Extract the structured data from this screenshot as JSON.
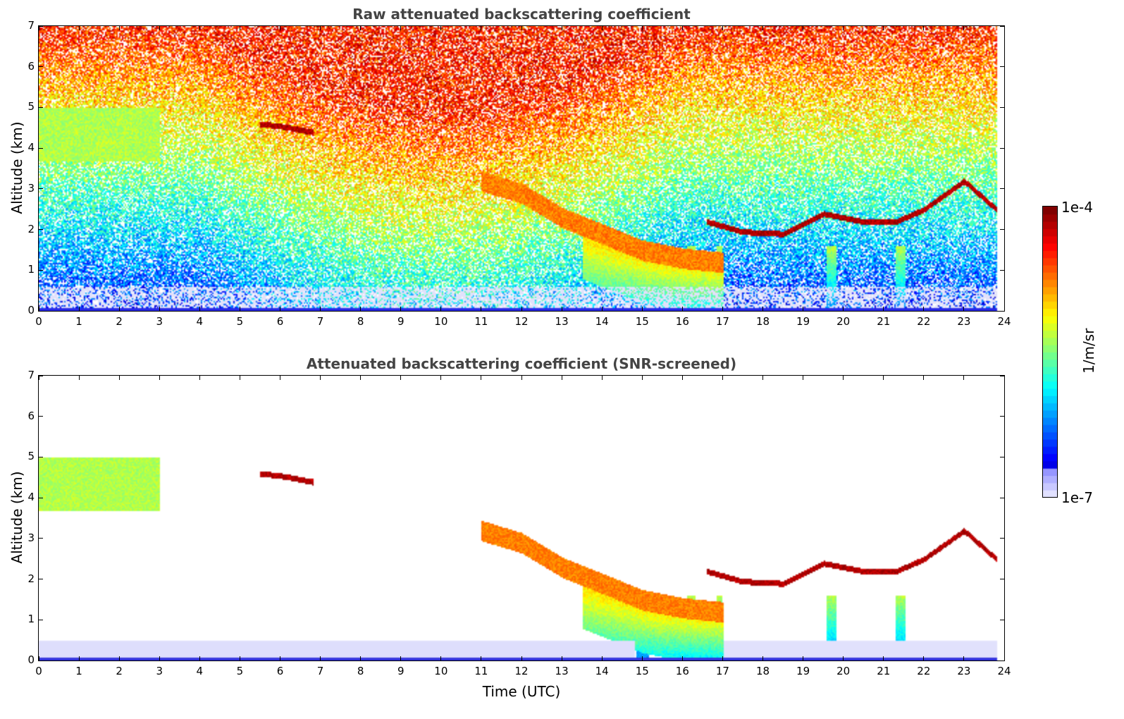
{
  "chart_data": [
    {
      "type": "heatmap",
      "id": "raw",
      "title": "Raw attenuated backscattering coefficient",
      "xlabel": "",
      "ylabel": "Altitude (km)",
      "xlim": [
        0,
        24
      ],
      "ylim": [
        0,
        7
      ],
      "x_ticks": [
        "0",
        "1",
        "2",
        "3",
        "4",
        "5",
        "6",
        "7",
        "8",
        "9",
        "10",
        "11",
        "12",
        "13",
        "14",
        "15",
        "16",
        "17",
        "18",
        "19",
        "20",
        "21",
        "22",
        "23",
        "24"
      ],
      "y_ticks": [
        "0",
        "1",
        "2",
        "3",
        "4",
        "5",
        "6",
        "7"
      ],
      "features": [
        {
          "name": "cloud-layer-descending",
          "t": [
            11,
            12,
            13,
            14,
            15,
            16,
            17
          ],
          "alt": [
            3.2,
            2.9,
            2.3,
            1.9,
            1.5,
            1.3,
            1.2
          ],
          "intensity": "high"
        },
        {
          "name": "cloud-top-layers",
          "t": [
            16.6,
            17.5,
            18.5,
            19.5,
            20.5,
            21.3,
            22,
            23,
            23.8
          ],
          "alt": [
            2.2,
            1.95,
            1.9,
            2.4,
            2.2,
            2.2,
            2.5,
            3.2,
            2.5
          ],
          "intensity": "very-high"
        },
        {
          "name": "aerosol-layer-midlevel",
          "t": [
            5.5,
            6.0,
            6.8
          ],
          "alt": [
            4.6,
            4.55,
            4.4
          ],
          "intensity": "very-high"
        }
      ]
    },
    {
      "type": "heatmap",
      "id": "snr",
      "title": "Attenuated backscattering coefficient (SNR-screened)",
      "xlabel": "Time (UTC)",
      "ylabel": "Altitude (km)",
      "xlim": [
        0,
        24
      ],
      "ylim": [
        0,
        7
      ],
      "x_ticks": [
        "0",
        "1",
        "2",
        "3",
        "4",
        "5",
        "6",
        "7",
        "8",
        "9",
        "10",
        "11",
        "12",
        "13",
        "14",
        "15",
        "16",
        "17",
        "18",
        "19",
        "20",
        "21",
        "22",
        "23",
        "24"
      ],
      "y_ticks": [
        "0",
        "1",
        "2",
        "3",
        "4",
        "5",
        "6",
        "7"
      ]
    }
  ],
  "colorbar": {
    "label": "1/m/sr",
    "max_label": "1e-4",
    "min_label": "1e-7",
    "colormap": "jet",
    "scale": "log"
  }
}
